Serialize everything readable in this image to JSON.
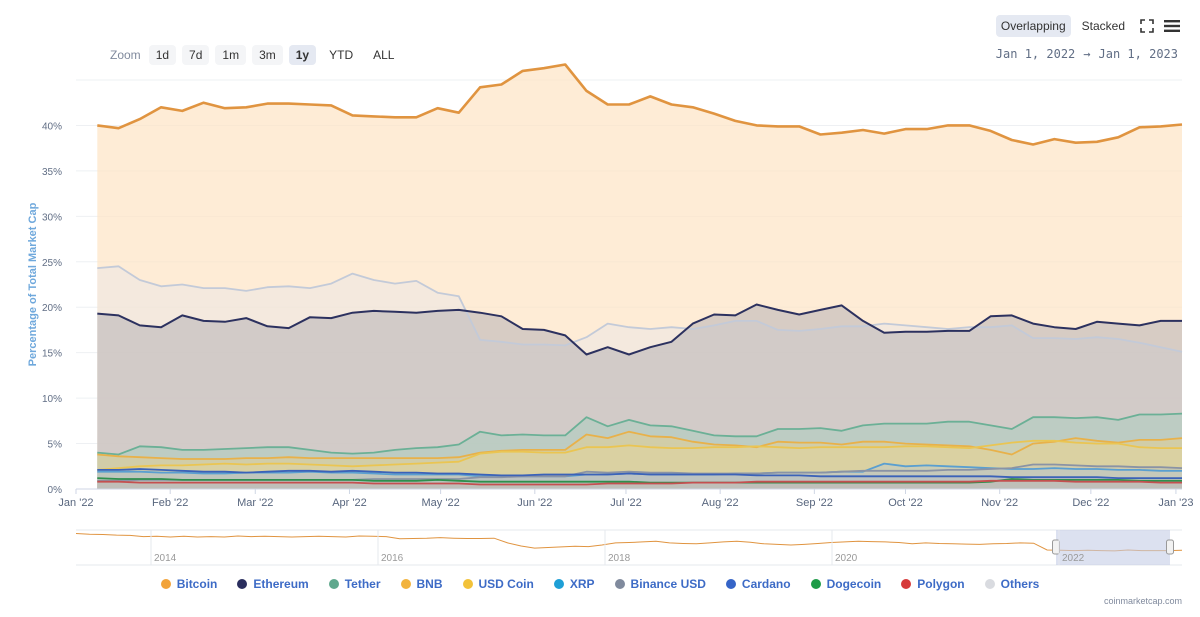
{
  "zoom": {
    "label": "Zoom",
    "buttons": [
      "1d",
      "7d",
      "1m",
      "3m",
      "1y",
      "YTD",
      "ALL"
    ],
    "active": "1y"
  },
  "mode": {
    "overlapping": "Overlapping",
    "stacked": "Stacked",
    "active": "Overlapping"
  },
  "range": {
    "from": "Jan 1, 2022",
    "arrow": "→",
    "to": "Jan 1, 2023"
  },
  "credit": "coinmarketcap.com",
  "chart_data": {
    "type": "area",
    "ylabel": "Percentage of Total Market Cap",
    "ylim": [
      0,
      45
    ],
    "yticks": [
      0,
      5,
      10,
      15,
      20,
      25,
      30,
      35,
      40
    ],
    "ytick_labels": [
      "0%",
      "5%",
      "10%",
      "15%",
      "20%",
      "25%",
      "30%",
      "35%",
      "40%"
    ],
    "xlim_days": [
      -3,
      361
    ],
    "xticks": [
      {
        "label": "Jan '22",
        "day": -3
      },
      {
        "label": "Feb '22",
        "day": 28
      },
      {
        "label": "Mar '22",
        "day": 56
      },
      {
        "label": "Apr '22",
        "day": 87
      },
      {
        "label": "May '22",
        "day": 117
      },
      {
        "label": "Jun '22",
        "day": 148
      },
      {
        "label": "Jul '22",
        "day": 178
      },
      {
        "label": "Aug '22",
        "day": 209
      },
      {
        "label": "Sep '22",
        "day": 240
      },
      {
        "label": "Oct '22",
        "day": 270
      },
      {
        "label": "Nov '22",
        "day": 301
      },
      {
        "label": "Dec '22",
        "day": 331
      },
      {
        "label": "Jan '23",
        "day": 359
      }
    ],
    "x_days": [
      4,
      11,
      18,
      25,
      32,
      39,
      46,
      53,
      60,
      67,
      74,
      81,
      88,
      95,
      102,
      109,
      116,
      123,
      130,
      137,
      144,
      151,
      158,
      165,
      172,
      179,
      186,
      193,
      200,
      207,
      214,
      221,
      228,
      235,
      242,
      249,
      256,
      263,
      270,
      277,
      284,
      291,
      298,
      305,
      312,
      319,
      326,
      333,
      340,
      347,
      354,
      361
    ],
    "grid": true,
    "legend_position": "bottom",
    "series": [
      {
        "name": "Bitcoin",
        "color": "#f2a33a",
        "line": "#e09440",
        "fill": "#fde4c4",
        "fill_opacity": 0.7,
        "values": [
          40.0,
          39.7,
          40.7,
          42.0,
          41.6,
          42.5,
          41.9,
          42.0,
          42.4,
          42.4,
          42.3,
          42.2,
          41.1,
          41.0,
          40.9,
          40.9,
          41.9,
          41.4,
          44.2,
          44.5,
          46.0,
          46.3,
          46.7,
          43.8,
          42.3,
          42.3,
          43.2,
          42.3,
          42.0,
          41.3,
          40.5,
          40.0,
          39.9,
          39.9,
          39.0,
          39.2,
          39.5,
          39.1,
          39.6,
          39.6,
          40.0,
          40.0,
          39.4,
          38.4,
          37.9,
          38.5,
          38.1,
          38.2,
          38.7,
          39.8,
          39.9,
          40.1
        ]
      },
      {
        "name": "Others",
        "color": "#d9dbe0",
        "line": "#c3cad8",
        "fill": "#e3e6ee",
        "fill_opacity": 0.35,
        "values": [
          24.3,
          24.5,
          23.0,
          22.3,
          22.5,
          22.1,
          22.1,
          21.8,
          22.2,
          22.3,
          22.1,
          22.6,
          23.7,
          23.0,
          22.6,
          22.9,
          21.6,
          21.2,
          16.4,
          16.2,
          15.9,
          15.9,
          15.8,
          16.7,
          18.2,
          17.8,
          17.6,
          17.8,
          17.6,
          18.0,
          18.5,
          18.5,
          17.5,
          17.4,
          17.6,
          17.9,
          17.9,
          18.2,
          18.0,
          17.8,
          17.6,
          17.8,
          17.8,
          18.0,
          16.6,
          16.6,
          16.5,
          16.7,
          16.5,
          16.1,
          15.6,
          15.1
        ]
      },
      {
        "name": "Ethereum",
        "color": "#2a2e5e",
        "line": "#2c315f",
        "fill": "#b7b3b6",
        "fill_opacity": 0.55,
        "values": [
          19.3,
          19.1,
          18.0,
          17.8,
          19.1,
          18.5,
          18.4,
          18.8,
          17.9,
          17.7,
          18.9,
          18.8,
          19.4,
          19.6,
          19.5,
          19.4,
          19.6,
          19.7,
          19.4,
          19.0,
          17.6,
          17.5,
          16.9,
          14.8,
          15.6,
          14.8,
          15.6,
          16.2,
          18.2,
          19.2,
          19.1,
          20.3,
          19.7,
          19.2,
          19.7,
          20.2,
          18.5,
          17.2,
          17.3,
          17.3,
          17.4,
          17.4,
          19.0,
          19.1,
          18.2,
          17.8,
          17.6,
          18.4,
          18.2,
          18.0,
          18.5,
          18.5
        ]
      },
      {
        "name": "Tether",
        "color": "#5fa88d",
        "line": "#6bb096",
        "fill": "#a8cdbd",
        "fill_opacity": 0.5,
        "values": [
          4.0,
          3.8,
          4.7,
          4.6,
          4.3,
          4.3,
          4.4,
          4.5,
          4.6,
          4.6,
          4.3,
          4.0,
          3.9,
          4.0,
          4.3,
          4.5,
          4.6,
          4.9,
          6.3,
          5.9,
          6.0,
          5.9,
          5.9,
          7.9,
          6.9,
          7.6,
          7.0,
          6.9,
          6.4,
          5.9,
          5.8,
          5.8,
          6.6,
          6.6,
          6.7,
          6.4,
          7.0,
          7.2,
          7.2,
          7.2,
          7.4,
          7.4,
          7.0,
          6.6,
          7.9,
          7.9,
          7.8,
          7.9,
          7.6,
          8.2,
          8.2,
          8.3
        ]
      },
      {
        "name": "BNB",
        "color": "#f2b33d",
        "line": "#e8b14a",
        "fill": "#e8cf88",
        "fill_opacity": 0.45,
        "values": [
          3.8,
          3.6,
          3.5,
          3.4,
          3.3,
          3.3,
          3.3,
          3.4,
          3.4,
          3.5,
          3.4,
          3.4,
          3.4,
          3.4,
          3.4,
          3.4,
          3.4,
          3.5,
          4.0,
          4.2,
          4.3,
          4.3,
          4.3,
          6.0,
          5.6,
          6.3,
          5.8,
          5.7,
          5.2,
          4.9,
          4.8,
          4.6,
          5.2,
          5.1,
          5.1,
          4.9,
          5.2,
          5.2,
          5.0,
          4.9,
          4.8,
          4.7,
          4.3,
          3.8,
          5.0,
          5.2,
          5.6,
          5.3,
          5.1,
          5.4,
          5.4,
          5.6
        ]
      },
      {
        "name": "USD Coin",
        "color": "#f2c23a",
        "line": "#eac552",
        "fill": "#efd995",
        "fill_opacity": 0.3,
        "values": [
          2.1,
          2.3,
          2.5,
          2.6,
          2.6,
          2.7,
          2.8,
          2.7,
          2.8,
          2.8,
          2.7,
          2.6,
          2.5,
          2.6,
          2.7,
          2.8,
          2.9,
          3.0,
          3.9,
          4.1,
          4.1,
          4.0,
          4.0,
          4.6,
          4.6,
          4.8,
          4.6,
          4.5,
          4.5,
          4.6,
          4.6,
          4.7,
          4.6,
          4.5,
          4.6,
          4.6,
          4.6,
          4.6,
          4.7,
          4.7,
          4.6,
          4.5,
          4.8,
          5.1,
          5.3,
          5.3,
          5.1,
          5.0,
          5.0,
          4.6,
          4.5,
          4.5
        ]
      },
      {
        "name": "XRP",
        "color": "#1e9fd6",
        "line": "#5a9fd0",
        "fill": "#a9c5e0",
        "fill_opacity": 0.3,
        "values": [
          1.9,
          1.9,
          1.9,
          1.8,
          1.8,
          1.7,
          1.7,
          1.8,
          1.8,
          1.8,
          1.9,
          1.8,
          1.8,
          1.7,
          1.6,
          1.6,
          1.6,
          1.6,
          1.4,
          1.4,
          1.4,
          1.4,
          1.4,
          1.6,
          1.6,
          1.7,
          1.6,
          1.6,
          1.6,
          1.6,
          1.7,
          1.7,
          1.8,
          1.8,
          1.8,
          1.9,
          1.9,
          2.8,
          2.5,
          2.6,
          2.5,
          2.4,
          2.3,
          2.2,
          2.2,
          2.3,
          2.2,
          2.2,
          2.1,
          2.1,
          2.0,
          2.0
        ]
      },
      {
        "name": "Binance USD",
        "color": "#808a9d",
        "line": "#8a93a5",
        "fill": "#b9bfca",
        "fill_opacity": 0.25,
        "values": [
          0.9,
          0.9,
          1.0,
          1.0,
          1.0,
          1.0,
          1.0,
          1.0,
          1.0,
          1.0,
          1.0,
          1.0,
          1.0,
          1.1,
          1.1,
          1.1,
          1.1,
          1.1,
          1.3,
          1.3,
          1.4,
          1.4,
          1.4,
          1.9,
          1.8,
          1.9,
          1.8,
          1.8,
          1.7,
          1.7,
          1.7,
          1.7,
          1.8,
          1.8,
          1.8,
          1.9,
          2.0,
          2.0,
          2.0,
          2.0,
          2.1,
          2.1,
          2.2,
          2.3,
          2.7,
          2.7,
          2.6,
          2.5,
          2.5,
          2.4,
          2.4,
          2.3
        ]
      },
      {
        "name": "Cardano",
        "color": "#3564c7",
        "line": "#3b62b8",
        "fill": "#9fb2d8",
        "fill_opacity": 0.25,
        "values": [
          2.1,
          2.1,
          2.2,
          2.1,
          2.0,
          1.9,
          1.9,
          1.8,
          1.9,
          2.0,
          2.0,
          1.9,
          2.0,
          1.9,
          1.8,
          1.8,
          1.7,
          1.7,
          1.6,
          1.5,
          1.5,
          1.6,
          1.6,
          1.6,
          1.6,
          1.7,
          1.6,
          1.6,
          1.6,
          1.6,
          1.6,
          1.5,
          1.5,
          1.5,
          1.4,
          1.4,
          1.4,
          1.4,
          1.4,
          1.4,
          1.4,
          1.4,
          1.4,
          1.3,
          1.3,
          1.3,
          1.3,
          1.3,
          1.2,
          1.2,
          1.2,
          1.2
        ]
      },
      {
        "name": "Dogecoin",
        "color": "#1d9b47",
        "line": "#2f8f4d",
        "fill": "#9fcfae",
        "fill_opacity": 0.2,
        "values": [
          1.2,
          1.1,
          1.1,
          1.1,
          1.0,
          1.0,
          1.0,
          1.0,
          1.0,
          1.0,
          1.0,
          1.0,
          1.0,
          0.9,
          0.9,
          0.9,
          1.0,
          0.9,
          0.8,
          0.8,
          0.8,
          0.8,
          0.8,
          0.8,
          0.8,
          0.8,
          0.7,
          0.7,
          0.7,
          0.7,
          0.7,
          0.7,
          0.7,
          0.7,
          0.7,
          0.7,
          0.7,
          0.7,
          0.7,
          0.7,
          0.7,
          0.7,
          0.8,
          1.1,
          1.0,
          1.0,
          1.0,
          1.0,
          1.0,
          0.9,
          0.9,
          0.9
        ]
      },
      {
        "name": "Polygon",
        "color": "#d63a3a",
        "line": "#c45050",
        "fill": "#e6a8a8",
        "fill_opacity": 0.2,
        "values": [
          0.8,
          0.8,
          0.7,
          0.7,
          0.7,
          0.7,
          0.7,
          0.7,
          0.7,
          0.7,
          0.7,
          0.7,
          0.7,
          0.6,
          0.6,
          0.6,
          0.6,
          0.6,
          0.5,
          0.5,
          0.5,
          0.5,
          0.5,
          0.5,
          0.6,
          0.6,
          0.6,
          0.6,
          0.7,
          0.7,
          0.7,
          0.8,
          0.8,
          0.8,
          0.8,
          0.8,
          0.8,
          0.8,
          0.8,
          0.8,
          0.8,
          0.8,
          0.9,
          0.9,
          0.9,
          0.9,
          0.8,
          0.8,
          0.8,
          0.8,
          0.7,
          0.7
        ]
      }
    ],
    "navigator": {
      "year_labels": [
        "2014",
        "2016",
        "2018",
        "2020",
        "2022"
      ],
      "values": [
        95,
        93,
        92,
        90,
        89,
        85,
        86,
        84,
        86,
        84,
        85,
        84,
        87,
        85,
        86,
        85,
        84,
        85,
        86,
        85,
        84,
        87,
        86,
        85,
        78,
        79,
        80,
        82,
        80,
        79,
        79,
        80,
        65,
        55,
        48,
        50,
        52,
        54,
        53,
        58,
        65,
        66,
        68,
        70,
        65,
        63,
        62,
        65,
        68,
        70,
        67,
        62,
        60,
        58,
        60,
        63,
        66,
        68,
        70,
        69,
        68,
        66,
        62,
        65,
        63,
        62,
        61,
        60,
        62,
        63,
        65,
        64,
        42,
        41,
        40,
        41,
        40,
        39,
        42,
        40,
        40,
        40,
        41
      ]
    },
    "legend_order": [
      "Bitcoin",
      "Ethereum",
      "Tether",
      "BNB",
      "USD Coin",
      "XRP",
      "Binance USD",
      "Cardano",
      "Dogecoin",
      "Polygon",
      "Others"
    ]
  }
}
